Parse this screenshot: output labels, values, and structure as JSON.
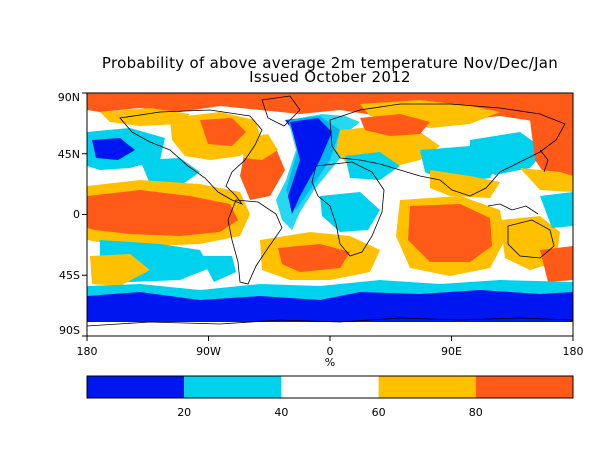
{
  "title_line1": "Probability of above average 2m temperature Nov/Dec/Jan",
  "title_line2": "Issued October 2012",
  "map": {
    "lat_ticks": [
      "90N",
      "45N",
      "0",
      "45S",
      "90S"
    ],
    "lon_ticks": [
      "180",
      "90W",
      "0",
      "90E",
      "180"
    ],
    "xlabel": "%",
    "lon_range": [
      -180,
      180
    ],
    "lat_range": [
      -90,
      90
    ]
  },
  "colorbar": {
    "colors": [
      "#0016f0",
      "#00d2ee",
      "#ffffff",
      "#ffc000",
      "#ff5a18"
    ],
    "tick_labels": [
      "20",
      "40",
      "60",
      "80"
    ],
    "range": [
      0,
      100
    ]
  },
  "colors": {
    "very_low": "#0016f0",
    "low": "#00d2ee",
    "neutral": "#ffffff",
    "high": "#ffc000",
    "very_high": "#ff5a18",
    "coastline": "#000000"
  }
}
